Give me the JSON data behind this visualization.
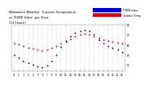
{
  "title": "Milwaukee Weather  Outdoor Temperature\nvs THSW Index  per Hour\n(24 Hours)",
  "background_color": "#ffffff",
  "plot_bg_color": "#ffffff",
  "hours": [
    0,
    1,
    2,
    3,
    4,
    5,
    6,
    7,
    8,
    9,
    10,
    11,
    12,
    13,
    14,
    15,
    16,
    17,
    18,
    19,
    20,
    21,
    22,
    23
  ],
  "temp": [
    62,
    60,
    58,
    56,
    55,
    54,
    53,
    54,
    56,
    58,
    61,
    64,
    67,
    70,
    72,
    73,
    72,
    70,
    68,
    66,
    65,
    64,
    63,
    62
  ],
  "thsw": [
    48,
    44,
    40,
    38,
    36,
    34,
    33,
    35,
    40,
    47,
    57,
    65,
    70,
    74,
    77,
    78,
    76,
    72,
    66,
    62,
    58,
    56,
    54,
    51
  ],
  "temp_color": "#cc0000",
  "thsw_color": "#0000cc",
  "marker_size": 1.5,
  "ylim": [
    28,
    84
  ],
  "ytick_values": [
    36,
    48,
    60,
    72,
    84
  ],
  "xlim": [
    -0.5,
    23.5
  ],
  "legend_blue_label": "THSW Index",
  "legend_red_label": "Outdoor Temp"
}
